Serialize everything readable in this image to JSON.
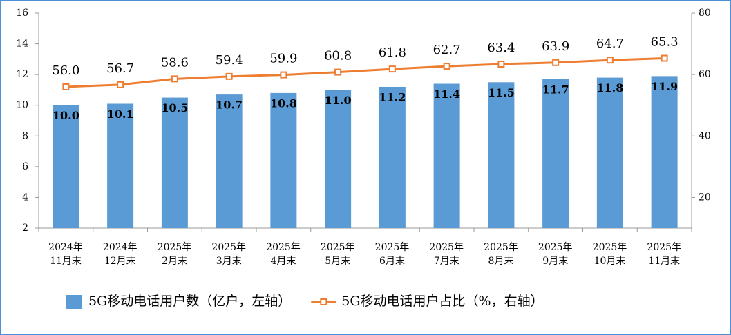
{
  "chart_data": {
    "type": "bar-line",
    "categories": [
      "2024年\n11月末",
      "2024年\n12月末",
      "2025年\n2月末",
      "2025年\n3月末",
      "2025年\n4月末",
      "2025年\n5月末",
      "2025年\n6月末",
      "2025年\n7月末",
      "2025年\n8月末",
      "2025年\n9月末",
      "2025年\n10月末",
      "2025年\n11月末"
    ],
    "series": [
      {
        "name": "5G移动电话用户数（亿户，左轴）",
        "type": "bar",
        "color": "#5b9bd5",
        "values": [
          10.0,
          10.1,
          10.5,
          10.7,
          10.8,
          11.0,
          11.2,
          11.4,
          11.5,
          11.7,
          11.8,
          11.9
        ],
        "value_labels": [
          "10.0",
          "10.1",
          "10.5",
          "10.7",
          "10.8",
          "11.0",
          "11.2",
          "11.4",
          "11.5",
          "11.7",
          "11.8",
          "11.9"
        ]
      },
      {
        "name": "5G移动电话用户占比（%，右轴）",
        "type": "line",
        "axis": "y2",
        "color": "#ed7d31",
        "values": [
          56.0,
          56.7,
          58.6,
          59.4,
          59.9,
          60.8,
          61.8,
          62.7,
          63.4,
          63.9,
          64.7,
          65.3
        ],
        "value_labels": [
          "56.0",
          "56.7",
          "58.6",
          "59.4",
          "59.9",
          "60.8",
          "61.8",
          "62.7",
          "63.4",
          "63.9",
          "64.7",
          "65.3"
        ]
      }
    ],
    "ylim": [
      2,
      16
    ],
    "yticks": [
      2,
      4,
      6,
      8,
      10,
      12,
      14,
      16
    ],
    "y2lim": [
      10,
      80
    ],
    "y2ticks": [
      20,
      40,
      60,
      80
    ],
    "legend": "bottom"
  }
}
